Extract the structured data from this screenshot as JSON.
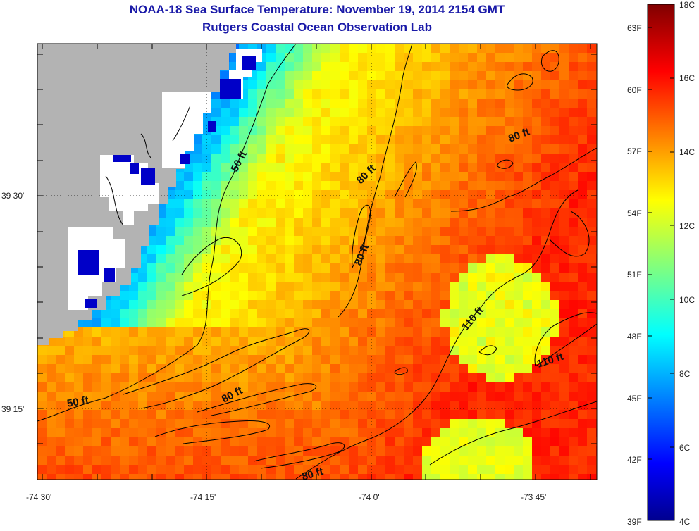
{
  "title": {
    "line1": "NOAA-18 Sea Surface Temperature:  November 19, 2014 2154 GMT",
    "line2": "Rutgers Coastal Ocean Observation Lab"
  },
  "map": {
    "lon_ticks": [
      "-74 30'",
      "-74 15'",
      "-74 0'",
      "-73 45'"
    ],
    "lat_ticks": [
      "39 30'",
      "39 15'"
    ],
    "land_color": "#b3b3b3",
    "cloud_color": "#ffffff",
    "contour_labels": [
      {
        "text": "50 ft"
      },
      {
        "text": "50 ft"
      },
      {
        "text": "80 ft"
      },
      {
        "text": "80 ft"
      },
      {
        "text": "80 ft"
      },
      {
        "text": "80 ft"
      },
      {
        "text": "80 ft"
      },
      {
        "text": "110 ft"
      },
      {
        "text": "110 ft"
      }
    ]
  },
  "colorbar": {
    "celsius_labels": [
      "18C",
      "16C",
      "14C",
      "12C",
      "10C",
      "8C",
      "6C",
      "4C"
    ],
    "fahrenheit_labels": [
      "63F",
      "60F",
      "57F",
      "54F",
      "51F",
      "48F",
      "45F",
      "42F",
      "39F"
    ],
    "colormap": "jet"
  }
}
